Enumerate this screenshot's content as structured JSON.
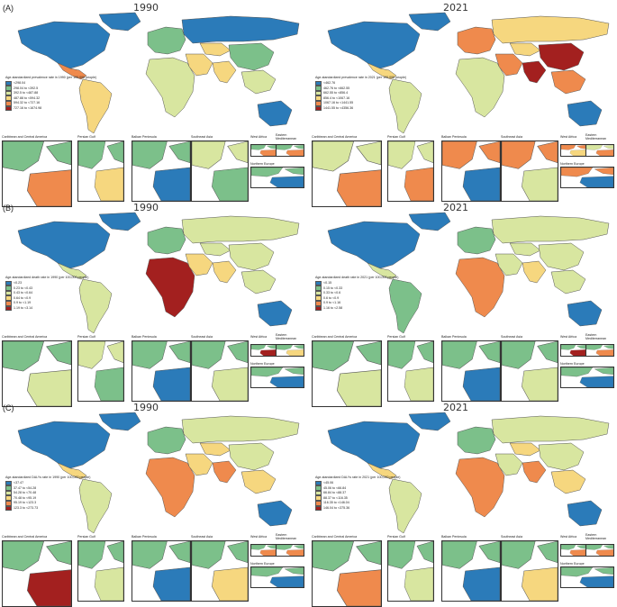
{
  "colors": {
    "c1": "#2b7bb9",
    "c2": "#7cc08a",
    "c3": "#d8e6a0",
    "c4": "#f6d77f",
    "c5": "#ef8a4d",
    "c6": "#a3201f",
    "ocean": "#ffffff",
    "border": "#555555"
  },
  "insets": [
    "Caribbean and Central America",
    "Persian Gulf",
    "Balkan Peninsula",
    "Southeast Asia",
    "West Africa",
    "Eastern Mediterranean",
    "Northern Europe"
  ],
  "panels": [
    {
      "tag": "(A)",
      "maps": [
        {
          "year": "1990",
          "legend_title": "Age-standardized prevalence rate in 1990 (per 100,000 people)",
          "legend": [
            "<298.04",
            "298.04 to <392.5",
            "392.5 to <487.88",
            "487.88 to <594.32",
            "594.32 to <727.16",
            "727.16 to <1674.98"
          ]
        },
        {
          "year": "2021",
          "legend_title": "Age-standardized prevalence rate in 2021 (per 100,000 people)",
          "legend": [
            "<462.76",
            "462.76 to <662.55",
            "662.55 to <856.4",
            "856.4 to <1067.16",
            "1067.16 to <1441.55",
            "1441.55 to <4356.36"
          ]
        }
      ]
    },
    {
      "tag": "(B)",
      "maps": [
        {
          "year": "1990",
          "legend_title": "Age-standardized death rate in 1990 (per 100,000 people)",
          "legend": [
            "<0.23",
            "0.23 to <0.43",
            "0.43 to <0.64",
            "0.64 to <0.9",
            "0.9 to <1.19",
            "1.19 to <3.14"
          ]
        },
        {
          "year": "2021",
          "legend_title": "Age-standardized death rate in 2021 (per 100,000 people)",
          "legend": [
            "<0.15",
            "0.15 to <0.33",
            "0.33 to <0.6",
            "0.6 to <0.9",
            "0.9 to <1.16",
            "1.16 to <2.58"
          ]
        }
      ]
    },
    {
      "tag": "(C)",
      "maps": [
        {
          "year": "1990",
          "legend_title": "Age-standardized DALYs rate in 1990 (per 100,000 people)",
          "legend": [
            "<37.47",
            "37.47 to <54.28",
            "54.28 to <70.48",
            "70.48 to <95.19",
            "95.19 to <123.3",
            "123.3 to <273.73"
          ]
        },
        {
          "year": "2021",
          "legend_title": "Age-standardized DALYs rate in 2021 (per 100,000 people)",
          "legend": [
            "<45.06",
            "45.06 to <66.84",
            "66.84 to <88.37",
            "88.37 to <116.35",
            "116.35 to <146.04",
            "146.04 to <375.36"
          ]
        }
      ]
    }
  ],
  "region_colors": [
    {
      "na": "c1",
      "ca": "c5",
      "sa": "c4",
      "eu": "c2",
      "af": "c3",
      "me": "c4",
      "ru": "c1",
      "ca2": "c4",
      "sa2": "c4",
      "cn": "c2",
      "sea": "c3",
      "au": "c1",
      "gl": "c1",
      "cr": "c5",
      "pg": "c4",
      "bk": "c1",
      "sa3": "c2",
      "wa": "c5",
      "em": "c5",
      "ne": "c1"
    },
    {
      "na": "c1",
      "ca": "c4",
      "sa": "c3",
      "eu": "c5",
      "af": "c3",
      "me": "c5",
      "ru": "c4",
      "ca2": "c4",
      "sa2": "c6",
      "cn": "c6",
      "sea": "c5",
      "au": "c1",
      "gl": "c1",
      "cr": "c5",
      "pg": "c5",
      "bk": "c1",
      "sa3": "c3",
      "wa": "c4",
      "em": "c5",
      "ne": "c1"
    },
    {
      "na": "c1",
      "ca": "c3",
      "sa": "c3",
      "eu": "c2",
      "af": "c6",
      "me": "c4",
      "ru": "c3",
      "ca2": "c3",
      "sa2": "c4",
      "cn": "c3",
      "sea": "c3",
      "au": "c1",
      "gl": "c1",
      "cr": "c3",
      "pg": "c2",
      "bk": "c1",
      "sa3": "c3",
      "wa": "c6",
      "em": "c4",
      "ne": "c1"
    },
    {
      "na": "c1",
      "ca": "c3",
      "sa": "c2",
      "eu": "c2",
      "af": "c5",
      "me": "c3",
      "ru": "c3",
      "ca2": "c3",
      "sa2": "c4",
      "cn": "c3",
      "sea": "c3",
      "au": "c1",
      "gl": "c1",
      "cr": "c3",
      "pg": "c3",
      "bk": "c1",
      "sa3": "c3",
      "wa": "c6",
      "em": "c5",
      "ne": "c1"
    },
    {
      "na": "c1",
      "ca": "c4",
      "sa": "c3",
      "eu": "c2",
      "af": "c5",
      "me": "c4",
      "ru": "c3",
      "ca2": "c4",
      "sa2": "c5",
      "cn": "c3",
      "sea": "c4",
      "au": "c1",
      "gl": "c1",
      "cr": "c6",
      "pg": "c3",
      "bk": "c1",
      "sa3": "c4",
      "wa": "c5",
      "em": "c5",
      "ne": "c1"
    },
    {
      "na": "c1",
      "ca": "c4",
      "sa": "c3",
      "eu": "c2",
      "af": "c5",
      "me": "c3",
      "ru": "c3",
      "ca2": "c4",
      "sa2": "c5",
      "cn": "c3",
      "sea": "c4",
      "au": "c1",
      "gl": "c1",
      "cr": "c5",
      "pg": "c3",
      "bk": "c1",
      "sa3": "c4",
      "wa": "c5",
      "em": "c5",
      "ne": "c1"
    }
  ]
}
